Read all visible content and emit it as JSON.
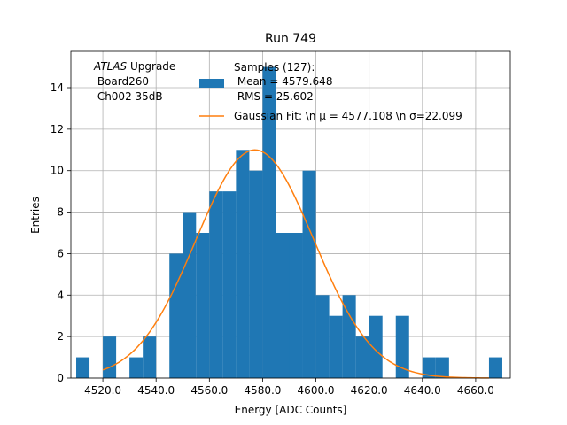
{
  "chart_data": {
    "type": "bar",
    "title": "Run 749",
    "xlabel": "Energy [ADC Counts]",
    "ylabel": "Entries",
    "xlim": [
      4508.0,
      4673.0
    ],
    "ylim": [
      0,
      15.75
    ],
    "grid": true,
    "xticks": [
      4520.0,
      4540.0,
      4560.0,
      4580.0,
      4600.0,
      4620.0,
      4640.0,
      4660.0
    ],
    "xtick_labels": [
      "4520.0",
      "4540.0",
      "4560.0",
      "4580.0",
      "4600.0",
      "4620.0",
      "4640.0",
      "4660.0"
    ],
    "yticks": [
      0,
      2,
      4,
      6,
      8,
      10,
      12,
      14
    ],
    "ytick_labels": [
      "0",
      "2",
      "4",
      "6",
      "8",
      "10",
      "12",
      "14"
    ],
    "bin_width": 5,
    "bins_start": [
      4510,
      4515,
      4520,
      4525,
      4530,
      4535,
      4540,
      4545,
      4550,
      4555,
      4560,
      4565,
      4570,
      4575,
      4580,
      4585,
      4590,
      4595,
      4600,
      4605,
      4610,
      4615,
      4620,
      4625,
      4630,
      4635,
      4640,
      4645,
      4650,
      4655,
      4660,
      4665
    ],
    "counts": [
      1,
      0,
      2,
      0,
      1,
      2,
      0,
      6,
      8,
      7,
      9,
      9,
      11,
      10,
      15,
      7,
      7,
      10,
      4,
      3,
      4,
      2,
      3,
      0,
      3,
      0,
      1,
      1,
      0,
      0,
      0,
      1
    ],
    "bar_color": "#1f77b4",
    "fit": {
      "mu": 4577.108,
      "sigma": 22.099,
      "amplitude": 11.0,
      "x_range": [
        4520,
        4665
      ],
      "color": "#ff7f0e"
    },
    "legend": {
      "location": "top-right",
      "samples_label": [
        "Samples (127):",
        " Mean = 4579.648",
        " RMS = 25.602"
      ],
      "fit_label": "Gaussian Fit: \\n μ = 4577.108 \\n σ=22.099"
    },
    "annotation": {
      "italic": "ATLAS",
      "first_line_rest": " Upgrade",
      "lines": [
        " Board260",
        " Ch002 35dB"
      ]
    }
  }
}
